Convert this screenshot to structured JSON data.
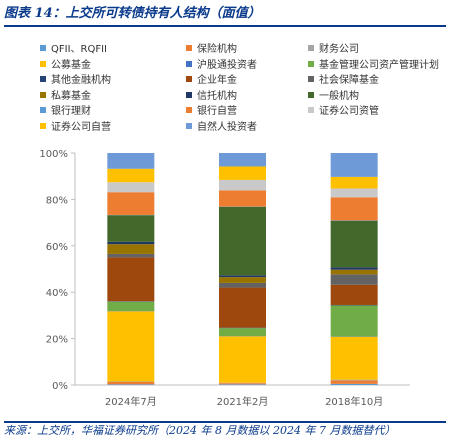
{
  "title": "图表 14：上交所可转债持有人结构（面值）",
  "source": "来源：上交所，华福证券研究所（2024 年 8 月数据以 2024 年 7 月数据替代）",
  "chart_data": {
    "type": "bar",
    "stacked": true,
    "ylim": [
      0,
      100
    ],
    "y_ticks": [
      "0%",
      "20%",
      "40%",
      "60%",
      "80%",
      "100%"
    ],
    "legend_position": "top",
    "categories": [
      "2024年7月",
      "2021年2月",
      "2018年10月"
    ],
    "series": [
      {
        "name": "QFII、RQFII",
        "color": "#5b9bd5",
        "values": [
          0.3,
          0.3,
          0.5
        ]
      },
      {
        "name": "保险机构",
        "color": "#ed7d31",
        "values": [
          1.0,
          0.5,
          1.5
        ]
      },
      {
        "name": "财务公司",
        "color": "#a5a5a5",
        "values": [
          0.2,
          0.2,
          0.3
        ]
      },
      {
        "name": "公募基金",
        "color": "#ffc000",
        "values": [
          30.3,
          20.0,
          18.5
        ]
      },
      {
        "name": "沪股通投资者",
        "color": "#4472c4",
        "values": [
          0.1,
          0.1,
          0.1
        ]
      },
      {
        "name": "基金管理公司资产管理计划",
        "color": "#70ad47",
        "values": [
          4.0,
          3.4,
          13.4
        ]
      },
      {
        "name": "其他金融机构",
        "color": "#264478",
        "values": [
          0.2,
          0.2,
          0.2
        ]
      },
      {
        "name": "企业年金",
        "color": "#9e480e",
        "values": [
          18.9,
          17.3,
          8.7
        ]
      },
      {
        "name": "社会保障基金",
        "color": "#636363",
        "values": [
          1.5,
          2.0,
          4.5
        ]
      },
      {
        "name": "私募基金",
        "color": "#997300",
        "values": [
          4.2,
          2.5,
          2.0
        ]
      },
      {
        "name": "信托机构",
        "color": "#203864",
        "values": [
          1.0,
          0.8,
          1.0
        ]
      },
      {
        "name": "一般机构",
        "color": "#43682b",
        "values": [
          11.5,
          29.5,
          20.0
        ]
      },
      {
        "name": "银行理财",
        "color": "#5b9bd5",
        "values": [
          0.1,
          0.1,
          0.2
        ]
      },
      {
        "name": "银行自营",
        "color": "#ed7d31",
        "values": [
          9.8,
          7.0,
          10.0
        ]
      },
      {
        "name": "证券公司资管",
        "color": "#c9c9c9",
        "values": [
          4.3,
          4.5,
          3.8
        ]
      },
      {
        "name": "证券公司自营",
        "color": "#ffc000",
        "values": [
          5.8,
          5.8,
          5.0
        ]
      },
      {
        "name": "自然人投资者",
        "color": "#6e9bd8",
        "values": [
          6.8,
          5.8,
          10.3
        ]
      }
    ]
  }
}
